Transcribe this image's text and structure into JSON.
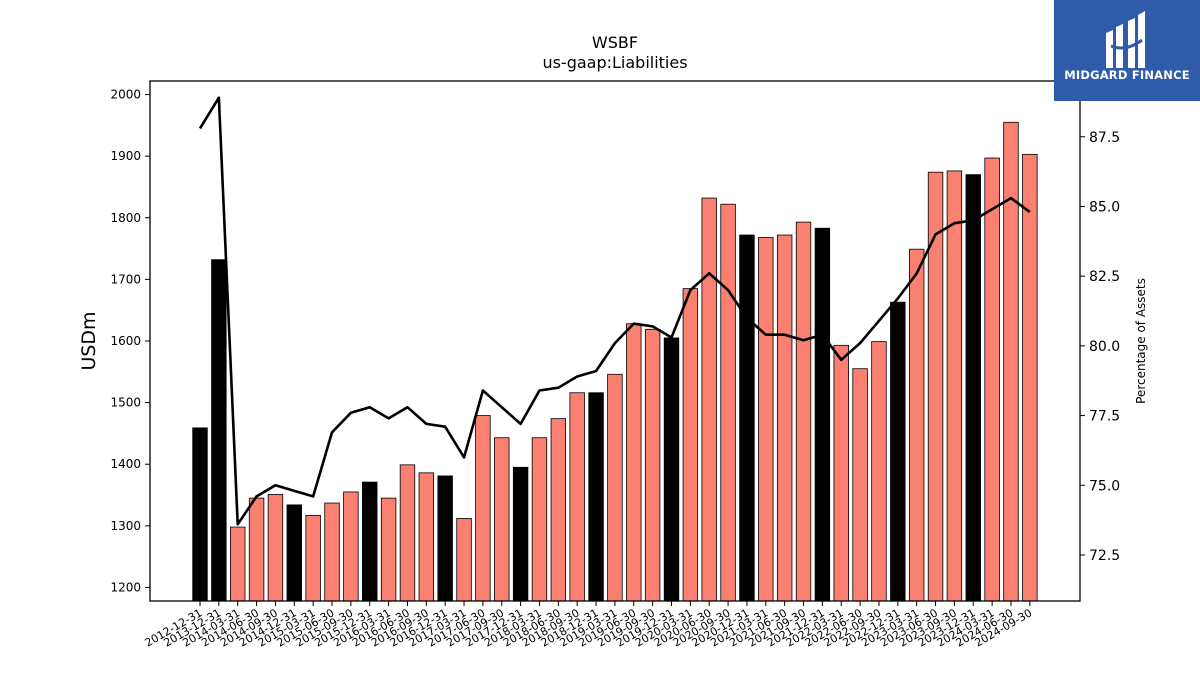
{
  "logo": {
    "text": "MIDGARD FINANCE"
  },
  "colors": {
    "annual": "#000000",
    "quarterly": "#fa8072",
    "line": "#000000",
    "logo_bg": "#2f5bab"
  },
  "chart_data": {
    "type": "bar",
    "title": "WSBF",
    "subtitle": "us-gaap:Liabilities",
    "ylabel": "USDm",
    "y2label": "Percentage of Assets",
    "ylim": [
      1178,
      2022
    ],
    "y2lim": [
      70.85,
      89.5
    ],
    "yticks": [
      1200,
      1300,
      1400,
      1500,
      1600,
      1700,
      1800,
      1900,
      2000
    ],
    "y2ticks": [
      "72.5",
      "75.0",
      "77.5",
      "80.0",
      "82.5",
      "85.0",
      "87.5"
    ],
    "categories": [
      "2012-12-31",
      "2013-12-31",
      "2014-03-31",
      "2014-06-30",
      "2014-09-30",
      "2014-12-31",
      "2015-03-31",
      "2015-06-30",
      "2015-09-30",
      "2015-12-31",
      "2016-03-31",
      "2016-06-30",
      "2016-09-30",
      "2016-12-31",
      "2017-03-31",
      "2017-06-30",
      "2017-09-30",
      "2017-12-31",
      "2018-03-31",
      "2018-06-30",
      "2018-09-30",
      "2018-12-31",
      "2019-03-31",
      "2019-06-30",
      "2019-09-30",
      "2019-12-31",
      "2020-03-31",
      "2020-06-30",
      "2020-09-30",
      "2020-12-31",
      "2021-03-31",
      "2021-06-30",
      "2021-09-30",
      "2021-12-31",
      "2022-03-31",
      "2022-06-30",
      "2022-09-30",
      "2022-12-31",
      "2023-03-31",
      "2023-06-30",
      "2023-09-30",
      "2023-12-31",
      "2024-03-31",
      "2024-06-30",
      "2024-09-30"
    ],
    "series": [
      {
        "kind": "bar",
        "values": [
          1459,
          1732,
          1298,
          1345,
          1351,
          1334,
          1317,
          1337,
          1355,
          1371,
          1345,
          1399,
          1386,
          1381,
          1312,
          1479,
          1443,
          1395,
          1443,
          1474,
          1516,
          1516,
          1546,
          1628,
          1619,
          1605,
          1685,
          1832,
          1822,
          1772,
          1768,
          1772,
          1793,
          1783,
          1593,
          1555,
          1599,
          1663,
          1749,
          1874,
          1876,
          1870,
          1897,
          1955,
          1903
        ],
        "kinds": [
          "annual",
          "annual",
          "quarterly",
          "quarterly",
          "quarterly",
          "annual",
          "quarterly",
          "quarterly",
          "quarterly",
          "annual",
          "quarterly",
          "quarterly",
          "quarterly",
          "annual",
          "quarterly",
          "quarterly",
          "quarterly",
          "annual",
          "quarterly",
          "quarterly",
          "quarterly",
          "annual",
          "quarterly",
          "quarterly",
          "quarterly",
          "annual",
          "quarterly",
          "quarterly",
          "quarterly",
          "annual",
          "quarterly",
          "quarterly",
          "quarterly",
          "annual",
          "quarterly",
          "quarterly",
          "quarterly",
          "annual",
          "quarterly",
          "quarterly",
          "quarterly",
          "annual",
          "quarterly",
          "quarterly",
          "quarterly"
        ]
      },
      {
        "kind": "line",
        "axis": "right",
        "values": [
          87.8,
          88.9,
          73.6,
          74.6,
          75.0,
          74.8,
          74.6,
          76.9,
          77.6,
          77.8,
          77.4,
          77.8,
          77.2,
          77.1,
          76.0,
          78.4,
          77.8,
          77.2,
          78.4,
          78.5,
          78.9,
          79.1,
          80.1,
          80.8,
          80.7,
          80.3,
          82.0,
          82.6,
          82.0,
          81.0,
          80.4,
          80.4,
          80.2,
          80.4,
          79.5,
          80.1,
          80.9,
          81.7,
          82.6,
          84.0,
          84.4,
          84.5,
          84.9,
          85.3,
          84.8
        ]
      }
    ]
  }
}
